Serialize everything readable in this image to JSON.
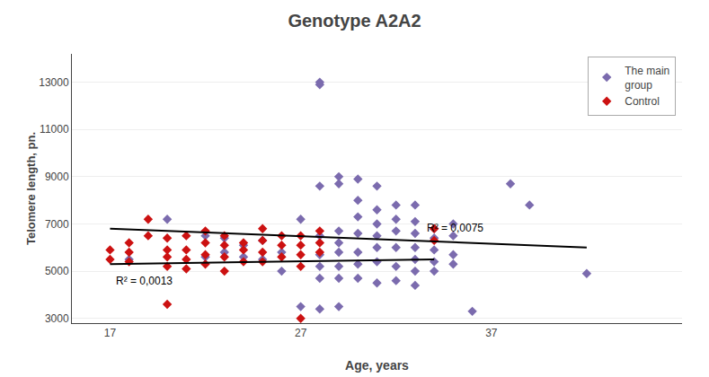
{
  "chart_data": {
    "type": "scatter",
    "title": "Genotype A2A2",
    "xlabel": "Age, years",
    "ylabel": "Telomere length, pn.",
    "xlim": [
      15,
      47
    ],
    "ylim": [
      2800,
      14200
    ],
    "xticks": [
      17,
      27,
      37
    ],
    "yticks": [
      3000,
      5000,
      7000,
      9000,
      11000,
      13000
    ],
    "grid": "y",
    "legend": "upper right",
    "series": [
      {
        "name": "The main\ngroup",
        "color": "#7B6BAE",
        "marker": "diamond",
        "x": [
          18,
          20,
          22,
          22,
          23,
          23,
          24,
          24,
          25,
          25,
          26,
          26,
          27,
          27,
          28,
          28,
          28,
          28,
          28,
          28,
          28,
          28,
          29,
          29,
          29,
          29,
          29,
          29,
          29,
          29,
          30,
          30,
          30,
          30,
          30,
          30,
          30,
          31,
          31,
          31,
          31,
          31,
          31,
          31,
          32,
          32,
          32,
          32,
          32,
          32,
          33,
          33,
          33,
          33,
          33,
          33,
          33,
          34,
          34,
          34,
          34,
          34,
          35,
          35,
          35,
          35,
          36,
          38,
          39,
          42
        ],
        "values": [
          5500,
          7200,
          6500,
          5600,
          6400,
          5800,
          6100,
          5600,
          6300,
          5500,
          5800,
          5000,
          7200,
          3500,
          13000,
          12900,
          8600,
          6500,
          5700,
          5200,
          4700,
          3400,
          9000,
          8700,
          6700,
          6200,
          5800,
          5200,
          4700,
          3500,
          8900,
          8000,
          7300,
          6600,
          5800,
          5300,
          4700,
          8600,
          7600,
          7000,
          6500,
          6000,
          5400,
          4500,
          7800,
          7200,
          6700,
          6000,
          5200,
          4600,
          7800,
          7100,
          6600,
          6000,
          5500,
          5000,
          4400,
          6800,
          6400,
          5900,
          5400,
          5000,
          7000,
          6500,
          5700,
          5300,
          3300,
          8700,
          7800,
          4900
        ]
      },
      {
        "name": "Control",
        "color": "#CC1111",
        "marker": "diamond",
        "x": [
          17,
          17,
          18,
          18,
          18,
          19,
          19,
          20,
          20,
          20,
          20,
          20,
          21,
          21,
          21,
          21,
          22,
          22,
          22,
          22,
          23,
          23,
          23,
          23,
          24,
          24,
          24,
          25,
          25,
          25,
          25,
          26,
          26,
          26,
          27,
          27,
          27,
          27,
          27,
          28,
          28,
          28,
          34,
          34
        ],
        "values": [
          5900,
          5500,
          6200,
          5800,
          5400,
          7200,
          6500,
          6400,
          5900,
          5600,
          5200,
          3600,
          6500,
          5900,
          5500,
          5100,
          6700,
          6200,
          5700,
          5300,
          6500,
          6100,
          5600,
          5000,
          6200,
          5900,
          5400,
          6800,
          6300,
          5800,
          5400,
          6500,
          6100,
          5600,
          6500,
          6100,
          5700,
          5200,
          3000,
          6700,
          6200,
          5800,
          6800,
          6300
        ]
      },
      {
        "type": "line",
        "color": "black",
        "x": [
          17,
          42
        ],
        "values": [
          6800,
          6000
        ]
      },
      {
        "type": "line",
        "color": "black",
        "x": [
          17,
          34
        ],
        "values": [
          5300,
          5500
        ]
      }
    ],
    "annotations": [
      {
        "text": "R² = 0,0075",
        "x": 33.5,
        "y": 6500
      },
      {
        "text": "R² = 0,0013",
        "x": 17.2,
        "y": 4250
      }
    ]
  }
}
